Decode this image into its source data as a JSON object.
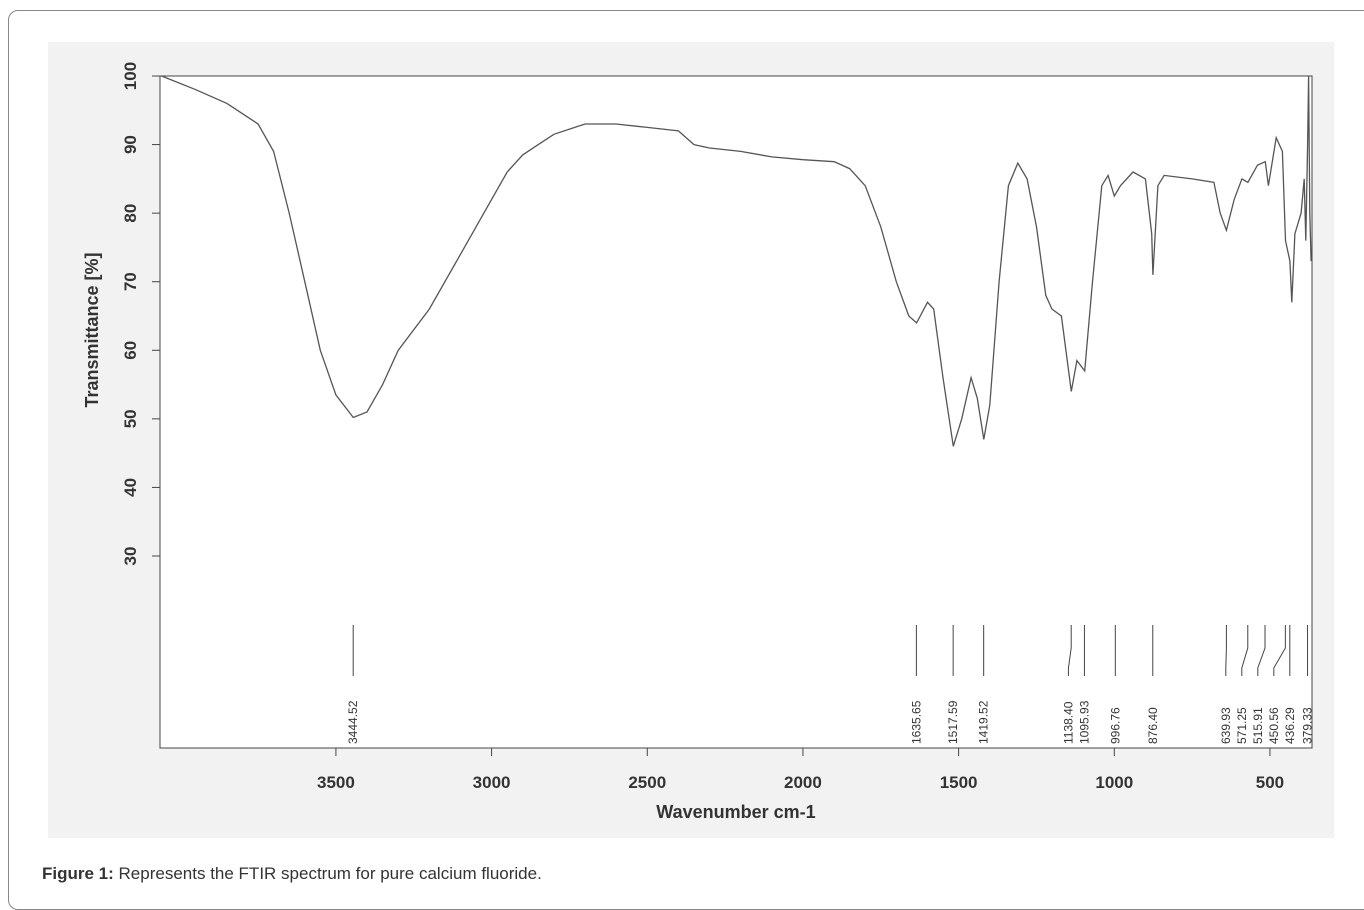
{
  "chart_data": {
    "type": "line",
    "ylabel": "Transmittance [%]",
    "xlabel": "Wavenumber cm-1",
    "color": "#555555",
    "xlim": [
      4065,
      365
    ],
    "xticks": [
      3500,
      3000,
      2500,
      2000,
      1500,
      1000,
      500
    ],
    "ylim": [
      2,
      100
    ],
    "yticks": [
      30,
      40,
      50,
      60,
      70,
      80,
      90,
      100
    ],
    "x": [
      4060,
      3950,
      3850,
      3750,
      3700,
      3650,
      3600,
      3550,
      3500,
      3444,
      3400,
      3350,
      3300,
      3200,
      3100,
      3000,
      2950,
      2900,
      2850,
      2800,
      2700,
      2600,
      2500,
      2400,
      2350,
      2300,
      2200,
      2100,
      2000,
      1900,
      1850,
      1800,
      1750,
      1700,
      1660,
      1635,
      1600,
      1580,
      1550,
      1517,
      1490,
      1460,
      1440,
      1419,
      1400,
      1370,
      1340,
      1310,
      1280,
      1250,
      1220,
      1200,
      1170,
      1138,
      1120,
      1095,
      1070,
      1040,
      1020,
      1000,
      980,
      940,
      900,
      880,
      876,
      860,
      840,
      750,
      680,
      660,
      640,
      615,
      590,
      571,
      540,
      515,
      505,
      480,
      460,
      450,
      436,
      430,
      420,
      400,
      390,
      385,
      379,
      376,
      372,
      368
    ],
    "values": [
      100,
      98,
      96,
      93,
      89,
      80,
      70,
      60,
      53.5,
      50.2,
      51,
      55,
      60,
      66,
      74,
      82,
      86,
      88.5,
      90,
      91.5,
      93,
      93,
      92.5,
      92,
      90,
      89.5,
      89,
      88.2,
      87.8,
      87.5,
      86.5,
      84,
      78,
      70,
      65,
      64,
      67,
      66,
      56,
      46,
      50,
      56,
      53,
      47,
      52,
      70,
      84,
      87.3,
      85,
      78,
      68,
      66,
      65,
      54,
      58.5,
      57,
      70,
      84,
      85.5,
      82.5,
      84,
      86,
      85,
      77,
      71,
      84,
      85.5,
      85,
      84.5,
      80,
      77.5,
      82,
      85,
      84.5,
      87,
      87.5,
      84,
      91,
      89,
      76,
      73,
      67,
      77,
      80,
      85,
      76,
      90,
      100,
      80,
      73
    ],
    "peaks": [
      {
        "value": 3444.52,
        "label": "3444.52"
      },
      {
        "value": 1635.65,
        "label": "1635.65"
      },
      {
        "value": 1517.59,
        "label": "1517.59"
      },
      {
        "value": 1419.52,
        "label": "1419.52"
      },
      {
        "value": 1138.4,
        "label": "1138.40"
      },
      {
        "value": 1095.93,
        "label": "1095.93"
      },
      {
        "value": 996.76,
        "label": "996.76"
      },
      {
        "value": 876.4,
        "label": "876.40"
      },
      {
        "value": 639.93,
        "label": "639.93"
      },
      {
        "value": 571.25,
        "label": "571.25"
      },
      {
        "value": 515.91,
        "label": "515.91"
      },
      {
        "value": 450.56,
        "label": "450.56"
      },
      {
        "value": 436.29,
        "label": "436.29"
      },
      {
        "value": 379.33,
        "label": "379.33"
      }
    ]
  },
  "caption": {
    "label": "Figure 1:",
    "text": "Represents the FTIR spectrum for pure calcium fluoride."
  }
}
